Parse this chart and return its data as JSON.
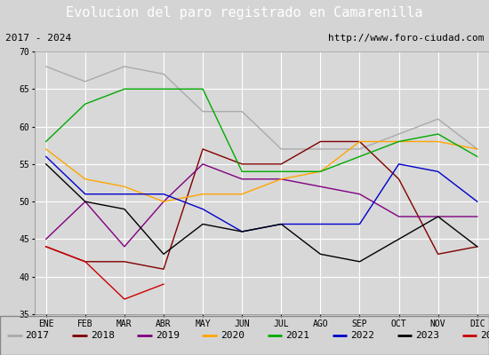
{
  "title": "Evolucion del paro registrado en Camarenilla",
  "subtitle_left": "2017 - 2024",
  "subtitle_right": "http://www.foro-ciudad.com",
  "months": [
    "ENE",
    "FEB",
    "MAR",
    "ABR",
    "MAY",
    "JUN",
    "JUL",
    "AGO",
    "SEP",
    "OCT",
    "NOV",
    "DIC"
  ],
  "ylim": [
    35,
    70
  ],
  "yticks": [
    35,
    40,
    45,
    50,
    55,
    60,
    65,
    70
  ],
  "series": {
    "2017": {
      "color": "#aaaaaa",
      "values": [
        68,
        66,
        68,
        67,
        62,
        62,
        57,
        57,
        57,
        59,
        61,
        57
      ]
    },
    "2018": {
      "color": "#800000",
      "values": [
        44,
        42,
        42,
        41,
        57,
        55,
        55,
        58,
        58,
        53,
        43,
        44
      ]
    },
    "2019": {
      "color": "#800080",
      "values": [
        45,
        50,
        44,
        50,
        55,
        53,
        53,
        52,
        51,
        48,
        48,
        48
      ]
    },
    "2020": {
      "color": "#ffa500",
      "values": [
        57,
        53,
        52,
        50,
        51,
        51,
        53,
        54,
        58,
        58,
        58,
        57
      ]
    },
    "2021": {
      "color": "#00aa00",
      "values": [
        58,
        63,
        65,
        65,
        65,
        54,
        54,
        54,
        56,
        58,
        59,
        56
      ]
    },
    "2022": {
      "color": "#0000cc",
      "values": [
        56,
        51,
        51,
        51,
        49,
        46,
        47,
        47,
        47,
        55,
        54,
        50
      ]
    },
    "2023": {
      "color": "#000000",
      "values": [
        55,
        50,
        49,
        43,
        47,
        46,
        47,
        43,
        42,
        45,
        48,
        44
      ]
    },
    "2024": {
      "color": "#cc0000",
      "values": [
        44,
        42,
        37,
        39,
        null,
        null,
        null,
        null,
        null,
        null,
        null,
        null
      ]
    }
  },
  "background_color": "#d4d4d4",
  "plot_background": "#d8d8d8",
  "title_background": "#5b8dd9",
  "title_color": "white",
  "subtitle_background": "#c8c8c8",
  "grid_color": "#ffffff",
  "legend_background": "#e8e8e8",
  "title_fontsize": 11,
  "subtitle_fontsize": 8,
  "tick_fontsize": 7,
  "legend_fontsize": 8
}
